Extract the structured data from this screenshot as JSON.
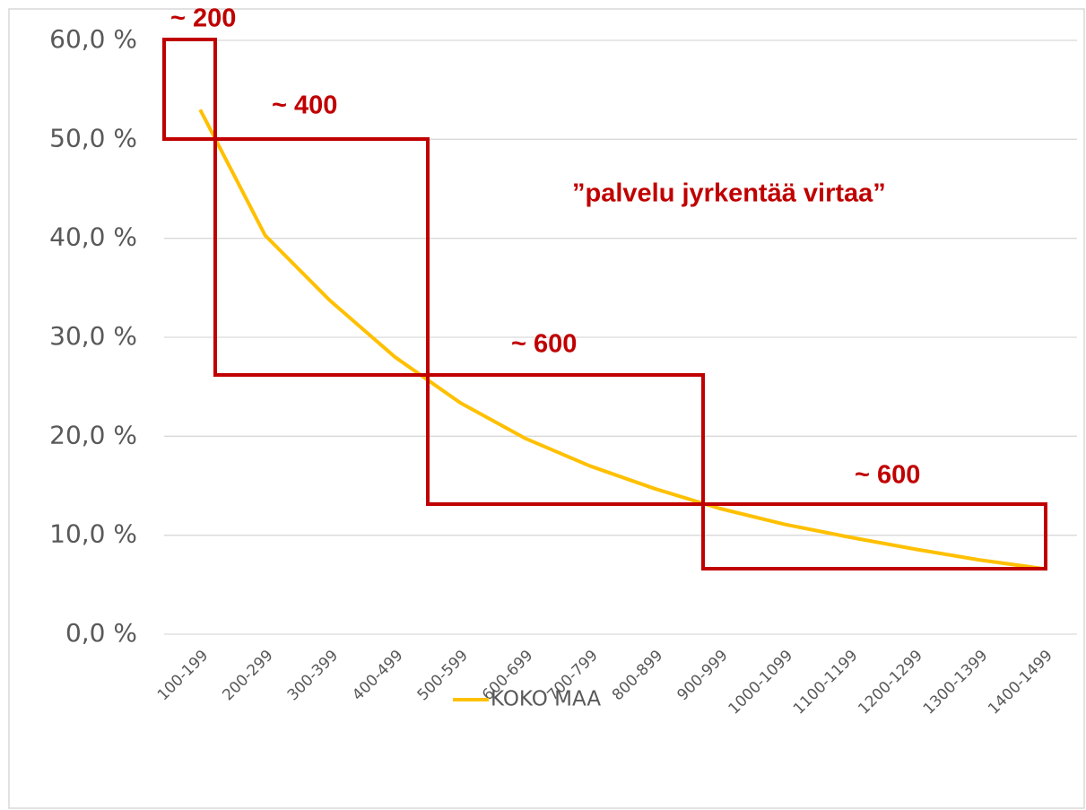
{
  "chart_data": {
    "type": "line",
    "categories": [
      "100-199",
      "200-299",
      "300-399",
      "400-499",
      "500-599",
      "600-699",
      "700-799",
      "800-899",
      "900-999",
      "1000-1099",
      "1100-1199",
      "1200-1299",
      "1300-1399",
      "1400-1499"
    ],
    "series": [
      {
        "name": "KOKO MAA",
        "color": "#ffc000",
        "values": [
          53.0,
          40.3,
          33.7,
          28.0,
          23.4,
          19.8,
          17.0,
          14.7,
          12.7,
          11.1,
          9.8,
          8.6,
          7.5,
          6.6
        ]
      }
    ],
    "ylim": [
      0,
      60
    ],
    "yticks": [
      {
        "value": 0,
        "label": "0,0 %"
      },
      {
        "value": 10,
        "label": "10,0 %"
      },
      {
        "value": 20,
        "label": "20,0 %"
      },
      {
        "value": 30,
        "label": "30,0 %"
      },
      {
        "value": 40,
        "label": "40,0 %"
      },
      {
        "value": 50,
        "label": "50,0 %"
      },
      {
        "value": 60,
        "label": "60,0 %"
      }
    ],
    "grid": true,
    "legend": "bottom",
    "annotations": [
      "~ 200",
      "~ 400",
      "”palvelu jyrkentää virtaa”",
      "~ 600",
      "~ 600"
    ]
  }
}
